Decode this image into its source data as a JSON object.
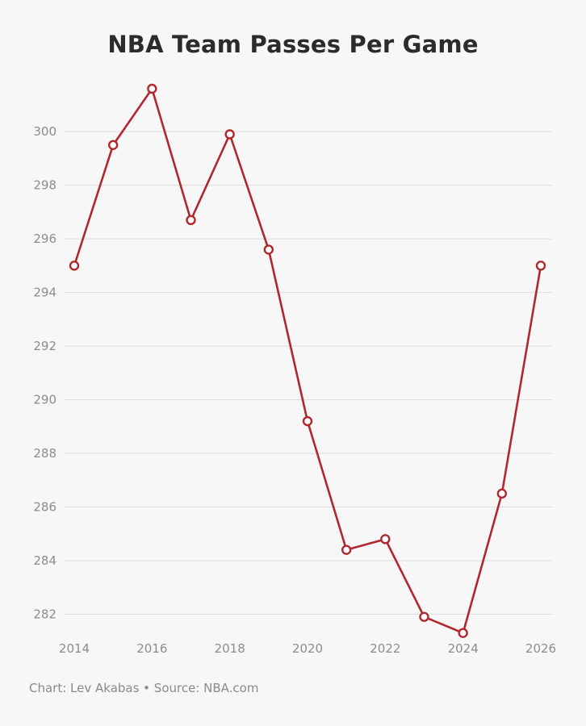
{
  "title": "NBA Team Passes Per Game",
  "footer": "Chart: Lev Akabas • Source: NBA.com",
  "colors": {
    "line": "#b0282e",
    "marker_fill": "#ffffff",
    "grid": "#dddddd",
    "background": "#f7f7f7"
  },
  "chart_data": {
    "type": "line",
    "title": "NBA Team Passes Per Game",
    "xlabel": "",
    "ylabel": "",
    "xlim": [
      2014,
      2026
    ],
    "ylim": [
      281.2,
      301.6
    ],
    "xticks": [
      2014,
      2016,
      2018,
      2020,
      2022,
      2024,
      2026
    ],
    "yticks": [
      282,
      284,
      286,
      288,
      290,
      292,
      294,
      296,
      298,
      300
    ],
    "grid": true,
    "legend": "none",
    "series": [
      {
        "x": [
          2014,
          2015,
          2016,
          2017,
          2018,
          2019,
          2020,
          2021,
          2022,
          2023,
          2024,
          2025,
          2026
        ],
        "values": [
          295.0,
          299.5,
          301.6,
          296.7,
          299.9,
          295.6,
          289.2,
          284.4,
          284.8,
          281.9,
          281.3,
          286.5,
          295.0
        ]
      }
    ]
  }
}
